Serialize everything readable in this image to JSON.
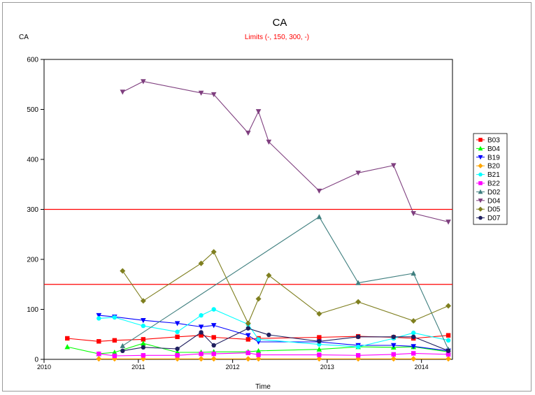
{
  "chart_data": {
    "type": "line",
    "title": "CA",
    "subtitle": "Limits (-, 150, 300, -)",
    "ylabel": "CA",
    "xlabel": "Time",
    "xlim": [
      "2010-01-01",
      "2014-05-01"
    ],
    "ylim": [
      0,
      600
    ],
    "x_ticks": [
      {
        "label": "2010",
        "date": "2010-01-01"
      },
      {
        "label": "2011",
        "date": "2011-01-01"
      },
      {
        "label": "2012",
        "date": "2012-01-01"
      },
      {
        "label": "2013",
        "date": "2013-01-01"
      },
      {
        "label": "2014",
        "date": "2014-01-01"
      }
    ],
    "y_ticks": [
      0,
      100,
      200,
      300,
      400,
      500,
      600
    ],
    "limits": [
      150,
      300
    ],
    "limit_color": "#ff0000",
    "grid": false,
    "legend_position": "right",
    "series": [
      {
        "name": "B03",
        "color": "#ff0000",
        "marker": "square",
        "points": [
          [
            "2010-04-01",
            42
          ],
          [
            "2010-08-01",
            36
          ],
          [
            "2010-10-01",
            38
          ],
          [
            "2011-01-20",
            40
          ],
          [
            "2011-06-01",
            45
          ],
          [
            "2011-09-01",
            48
          ],
          [
            "2011-10-20",
            44
          ],
          [
            "2012-03-01",
            40
          ],
          [
            "2012-04-10",
            42
          ],
          [
            "2012-12-01",
            44
          ],
          [
            "2013-05-01",
            46
          ],
          [
            "2013-09-15",
            44
          ],
          [
            "2013-12-01",
            42
          ],
          [
            "2014-04-15",
            48
          ]
        ]
      },
      {
        "name": "B04",
        "color": "#00ff00",
        "marker": "triangle-up",
        "points": [
          [
            "2010-04-01",
            25
          ],
          [
            "2010-08-01",
            11
          ],
          [
            "2010-10-01",
            14
          ],
          [
            "2011-01-20",
            32
          ],
          [
            "2011-06-01",
            14
          ],
          [
            "2011-09-01",
            14
          ],
          [
            "2011-10-20",
            15
          ],
          [
            "2012-03-01",
            15
          ],
          [
            "2012-04-10",
            17
          ],
          [
            "2012-12-01",
            20
          ],
          [
            "2013-05-01",
            25
          ],
          [
            "2013-09-15",
            24
          ],
          [
            "2013-12-01",
            25
          ],
          [
            "2014-04-15",
            15
          ]
        ]
      },
      {
        "name": "B19",
        "color": "#0000ff",
        "marker": "triangle-down",
        "points": [
          [
            "2010-08-01",
            88
          ],
          [
            "2010-10-01",
            85
          ],
          [
            "2011-01-20",
            78
          ],
          [
            "2011-06-01",
            72
          ],
          [
            "2011-09-01",
            65
          ],
          [
            "2011-10-20",
            68
          ],
          [
            "2012-03-01",
            48
          ],
          [
            "2012-04-10",
            35
          ],
          [
            "2012-12-01",
            35
          ],
          [
            "2013-05-01",
            28
          ],
          [
            "2013-09-15",
            28
          ],
          [
            "2013-12-01",
            26
          ],
          [
            "2014-04-15",
            17
          ]
        ]
      },
      {
        "name": "B20",
        "color": "#ffa500",
        "marker": "diamond",
        "points": [
          [
            "2010-08-01",
            1
          ],
          [
            "2010-10-01",
            1
          ],
          [
            "2011-01-20",
            1
          ],
          [
            "2011-06-01",
            1
          ],
          [
            "2011-09-01",
            1
          ],
          [
            "2011-10-20",
            1
          ],
          [
            "2012-03-01",
            1
          ],
          [
            "2012-04-10",
            1
          ],
          [
            "2012-12-01",
            1
          ],
          [
            "2013-05-01",
            1
          ],
          [
            "2013-09-15",
            1
          ],
          [
            "2013-12-01",
            1
          ],
          [
            "2014-04-15",
            1
          ]
        ]
      },
      {
        "name": "B21",
        "color": "#00ffff",
        "marker": "circle",
        "points": [
          [
            "2010-08-01",
            82
          ],
          [
            "2010-10-01",
            84
          ],
          [
            "2011-01-20",
            67
          ],
          [
            "2011-06-01",
            55
          ],
          [
            "2011-09-01",
            88
          ],
          [
            "2011-10-20",
            100
          ],
          [
            "2012-03-01",
            70
          ],
          [
            "2012-04-10",
            40
          ],
          [
            "2012-12-01",
            30
          ],
          [
            "2013-05-01",
            25
          ],
          [
            "2013-09-15",
            42
          ],
          [
            "2013-12-01",
            53
          ],
          [
            "2014-04-15",
            38
          ]
        ]
      },
      {
        "name": "B22",
        "color": "#ff00ff",
        "marker": "square",
        "points": [
          [
            "2010-08-01",
            11
          ],
          [
            "2010-10-01",
            7
          ],
          [
            "2011-01-20",
            8
          ],
          [
            "2011-06-01",
            8
          ],
          [
            "2011-09-01",
            11
          ],
          [
            "2011-10-20",
            11
          ],
          [
            "2012-03-01",
            13
          ],
          [
            "2012-04-10",
            9
          ],
          [
            "2012-12-01",
            9
          ],
          [
            "2013-05-01",
            8
          ],
          [
            "2013-09-15",
            10
          ],
          [
            "2013-12-01",
            12
          ],
          [
            "2014-04-15",
            10
          ]
        ]
      },
      {
        "name": "D02",
        "color": "#3f7f7f",
        "marker": "triangle-up",
        "points": [
          [
            "2010-11-01",
            27
          ],
          [
            "2012-12-01",
            285
          ],
          [
            "2013-05-01",
            153
          ],
          [
            "2013-12-01",
            172
          ],
          [
            "2014-04-15",
            20
          ]
        ]
      },
      {
        "name": "D04",
        "color": "#7f3f7f",
        "marker": "triangle-down",
        "points": [
          [
            "2010-11-01",
            535
          ],
          [
            "2011-01-20",
            556
          ],
          [
            "2011-09-01",
            533
          ],
          [
            "2011-10-20",
            530
          ],
          [
            "2012-03-01",
            453
          ],
          [
            "2012-04-10",
            496
          ],
          [
            "2012-05-20",
            435
          ],
          [
            "2012-12-01",
            337
          ],
          [
            "2013-05-01",
            373
          ],
          [
            "2013-09-15",
            388
          ],
          [
            "2013-12-01",
            292
          ],
          [
            "2014-04-15",
            275
          ]
        ]
      },
      {
        "name": "D05",
        "color": "#7f7f1f",
        "marker": "diamond",
        "points": [
          [
            "2010-11-01",
            177
          ],
          [
            "2011-01-20",
            117
          ],
          [
            "2011-09-01",
            192
          ],
          [
            "2011-10-20",
            215
          ],
          [
            "2012-03-01",
            72
          ],
          [
            "2012-04-10",
            121
          ],
          [
            "2012-05-20",
            168
          ],
          [
            "2012-12-01",
            91
          ],
          [
            "2013-05-01",
            115
          ],
          [
            "2013-12-01",
            77
          ],
          [
            "2014-04-15",
            107
          ]
        ]
      },
      {
        "name": "D07",
        "color": "#1f1f5f",
        "marker": "circle",
        "points": [
          [
            "2010-11-01",
            17
          ],
          [
            "2011-01-20",
            24
          ],
          [
            "2011-06-01",
            21
          ],
          [
            "2011-09-01",
            54
          ],
          [
            "2011-10-20",
            28
          ],
          [
            "2012-03-01",
            62
          ],
          [
            "2012-05-20",
            49
          ],
          [
            "2012-12-01",
            36
          ],
          [
            "2013-05-01",
            45
          ],
          [
            "2013-09-15",
            45
          ],
          [
            "2013-12-01",
            45
          ],
          [
            "2014-04-15",
            17
          ]
        ]
      }
    ]
  }
}
